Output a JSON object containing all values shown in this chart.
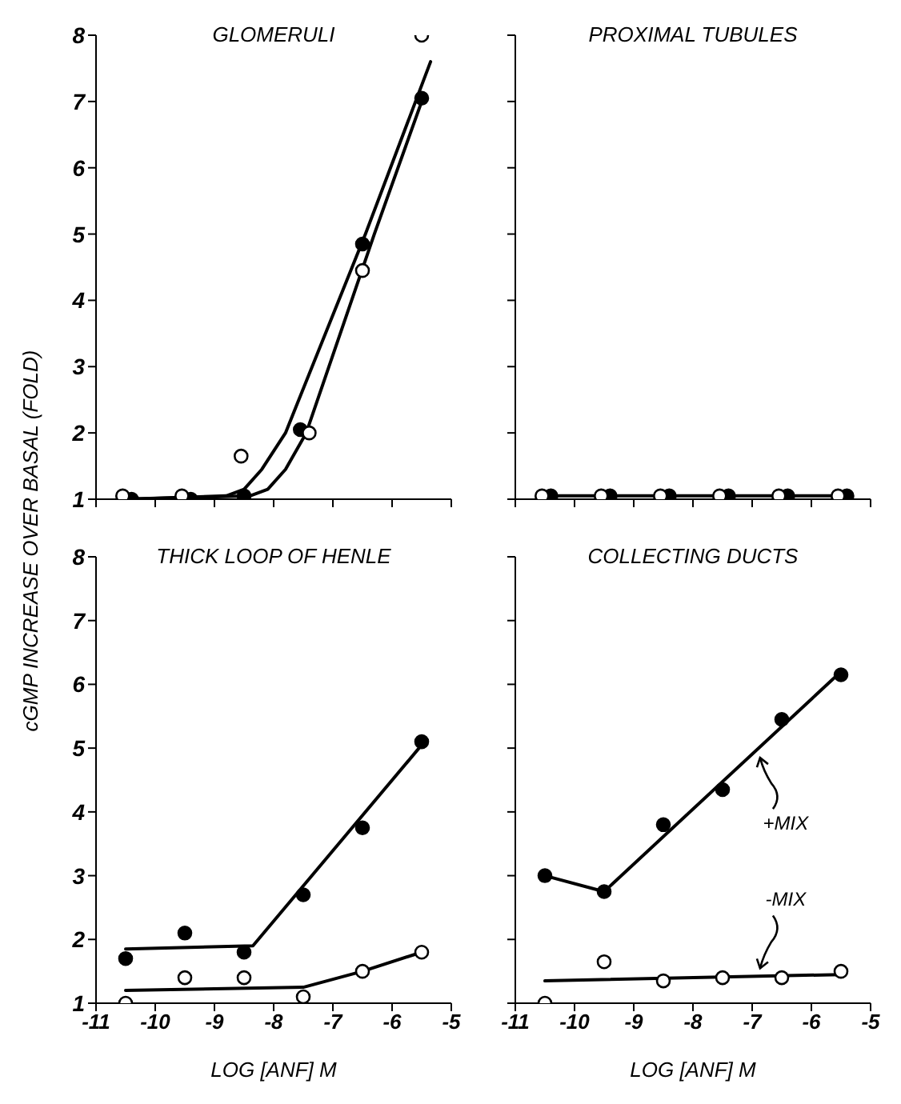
{
  "chart_data": [
    {
      "type": "scatter",
      "title": "GLOMERULI",
      "ylabel": "cGMP INCREASE OVER BASAL (FOLD)",
      "xlim": [
        -11,
        -5
      ],
      "xticks": [
        -11,
        -10,
        -9,
        -8,
        -7,
        -6,
        -5
      ],
      "ylim": [
        1,
        8
      ],
      "yticks": [
        1,
        2,
        3,
        4,
        5,
        6,
        7,
        8
      ],
      "tick_labels": "y",
      "marker": "circle",
      "grid": false,
      "series": [
        {
          "color": "#000000",
          "x": [
            -10.4,
            -9.4,
            -8.5,
            -7.55,
            -6.5,
            -5.5
          ],
          "values": [
            1.0,
            1.0,
            1.05,
            2.05,
            4.85,
            7.05
          ]
        },
        {
          "color": "#ffffff",
          "x": [
            -10.55,
            -9.55,
            -8.55,
            -7.4,
            -6.5,
            -5.5
          ],
          "values": [
            1.05,
            1.05,
            1.65,
            2.0,
            4.45,
            8.0
          ]
        },
        {
          "type": "line",
          "color": "#000000",
          "marker": "none",
          "x": [
            -10.5,
            -8.8,
            -8.5,
            -8.2,
            -7.8,
            -6.45,
            -5.35
          ],
          "values": [
            1.0,
            1.05,
            1.15,
            1.45,
            2.0,
            5.0,
            7.6
          ]
        },
        {
          "type": "line",
          "color": "#000000",
          "marker": "none",
          "x": [
            -10.5,
            -8.4,
            -8.1,
            -7.8,
            -7.45,
            -6.3,
            -5.5
          ],
          "values": [
            1.0,
            1.05,
            1.15,
            1.45,
            2.0,
            5.0,
            7.0
          ]
        }
      ]
    },
    {
      "type": "scatter",
      "title": "PROXIMAL TUBULES",
      "xlim": [
        -11,
        -5
      ],
      "xticks": [
        -11,
        -10,
        -9,
        -8,
        -7,
        -6,
        -5
      ],
      "ylim": [
        1,
        8
      ],
      "yticks": [
        1,
        2,
        3,
        4,
        5,
        6,
        7,
        8
      ],
      "tick_labels": false,
      "marker": "circle",
      "grid": false,
      "series": [
        {
          "color": "#000000",
          "x": [
            -10.4,
            -9.4,
            -8.4,
            -7.4,
            -6.4,
            -5.4
          ],
          "values": [
            1.05,
            1.05,
            1.05,
            1.05,
            1.05,
            1.05
          ]
        },
        {
          "color": "#ffffff",
          "x": [
            -10.55,
            -9.55,
            -8.55,
            -7.55,
            -6.55,
            -5.55
          ],
          "values": [
            1.05,
            1.05,
            1.05,
            1.05,
            1.05,
            1.05
          ]
        },
        {
          "type": "line",
          "color": "#000000",
          "marker": "none",
          "x": [
            -10.55,
            -5.4
          ],
          "values": [
            1.05,
            1.05
          ]
        }
      ]
    },
    {
      "type": "scatter",
      "title": "THICK LOOP OF HENLE",
      "xlabel": "LOG [ANF] M",
      "xlim": [
        -11,
        -5
      ],
      "xticks": [
        -11,
        -10,
        -9,
        -8,
        -7,
        -6,
        -5
      ],
      "ylim": [
        1,
        8
      ],
      "yticks": [
        1,
        2,
        3,
        4,
        5,
        6,
        7,
        8
      ],
      "marker": "circle",
      "grid": false,
      "series": [
        {
          "color": "#000000",
          "x": [
            -10.5,
            -9.5,
            -8.5,
            -7.5,
            -6.5,
            -5.5
          ],
          "values": [
            1.7,
            2.1,
            1.8,
            2.7,
            3.75,
            5.1
          ]
        },
        {
          "color": "#ffffff",
          "x": [
            -10.5,
            -9.5,
            -8.5,
            -7.5,
            -6.5,
            -5.5
          ],
          "values": [
            1.0,
            1.4,
            1.4,
            1.1,
            1.5,
            1.8
          ]
        },
        {
          "type": "line",
          "color": "#000000",
          "marker": "none",
          "x": [
            -10.5,
            -8.35,
            -5.5
          ],
          "values": [
            1.85,
            1.9,
            5.05
          ]
        },
        {
          "type": "line",
          "color": "#000000",
          "marker": "none",
          "x": [
            -10.5,
            -7.5,
            -6.5,
            -5.5
          ],
          "values": [
            1.2,
            1.25,
            1.5,
            1.8
          ]
        }
      ]
    },
    {
      "type": "scatter",
      "title": "COLLECTING DUCTS",
      "xlabel": "LOG [ANF] M",
      "xlim": [
        -11,
        -5
      ],
      "xticks": [
        -11,
        -10,
        -9,
        -8,
        -7,
        -6,
        -5
      ],
      "ylim": [
        1,
        8
      ],
      "yticks": [
        1,
        2,
        3,
        4,
        5,
        6,
        7,
        8
      ],
      "tick_labels": "x",
      "marker": "circle",
      "grid": false,
      "series": [
        {
          "color": "#000000",
          "x": [
            -10.5,
            -9.5,
            -8.5,
            -7.5,
            -6.5,
            -5.5
          ],
          "values": [
            3.0,
            2.75,
            3.8,
            4.35,
            5.45,
            6.15
          ]
        },
        {
          "color": "#ffffff",
          "x": [
            -10.5,
            -9.5,
            -8.5,
            -7.5,
            -6.5,
            -5.5
          ],
          "values": [
            1.0,
            1.65,
            1.35,
            1.4,
            1.4,
            1.5
          ]
        },
        {
          "type": "line",
          "name": "+MIX",
          "color": "#000000",
          "marker": "none",
          "x": [
            -10.5,
            -9.5,
            -5.5
          ],
          "values": [
            3.0,
            2.75,
            6.2
          ]
        },
        {
          "type": "line",
          "name": "-MIX",
          "color": "#000000",
          "marker": "none",
          "x": [
            -10.5,
            -5.5
          ],
          "values": [
            1.35,
            1.45
          ]
        }
      ]
    }
  ]
}
